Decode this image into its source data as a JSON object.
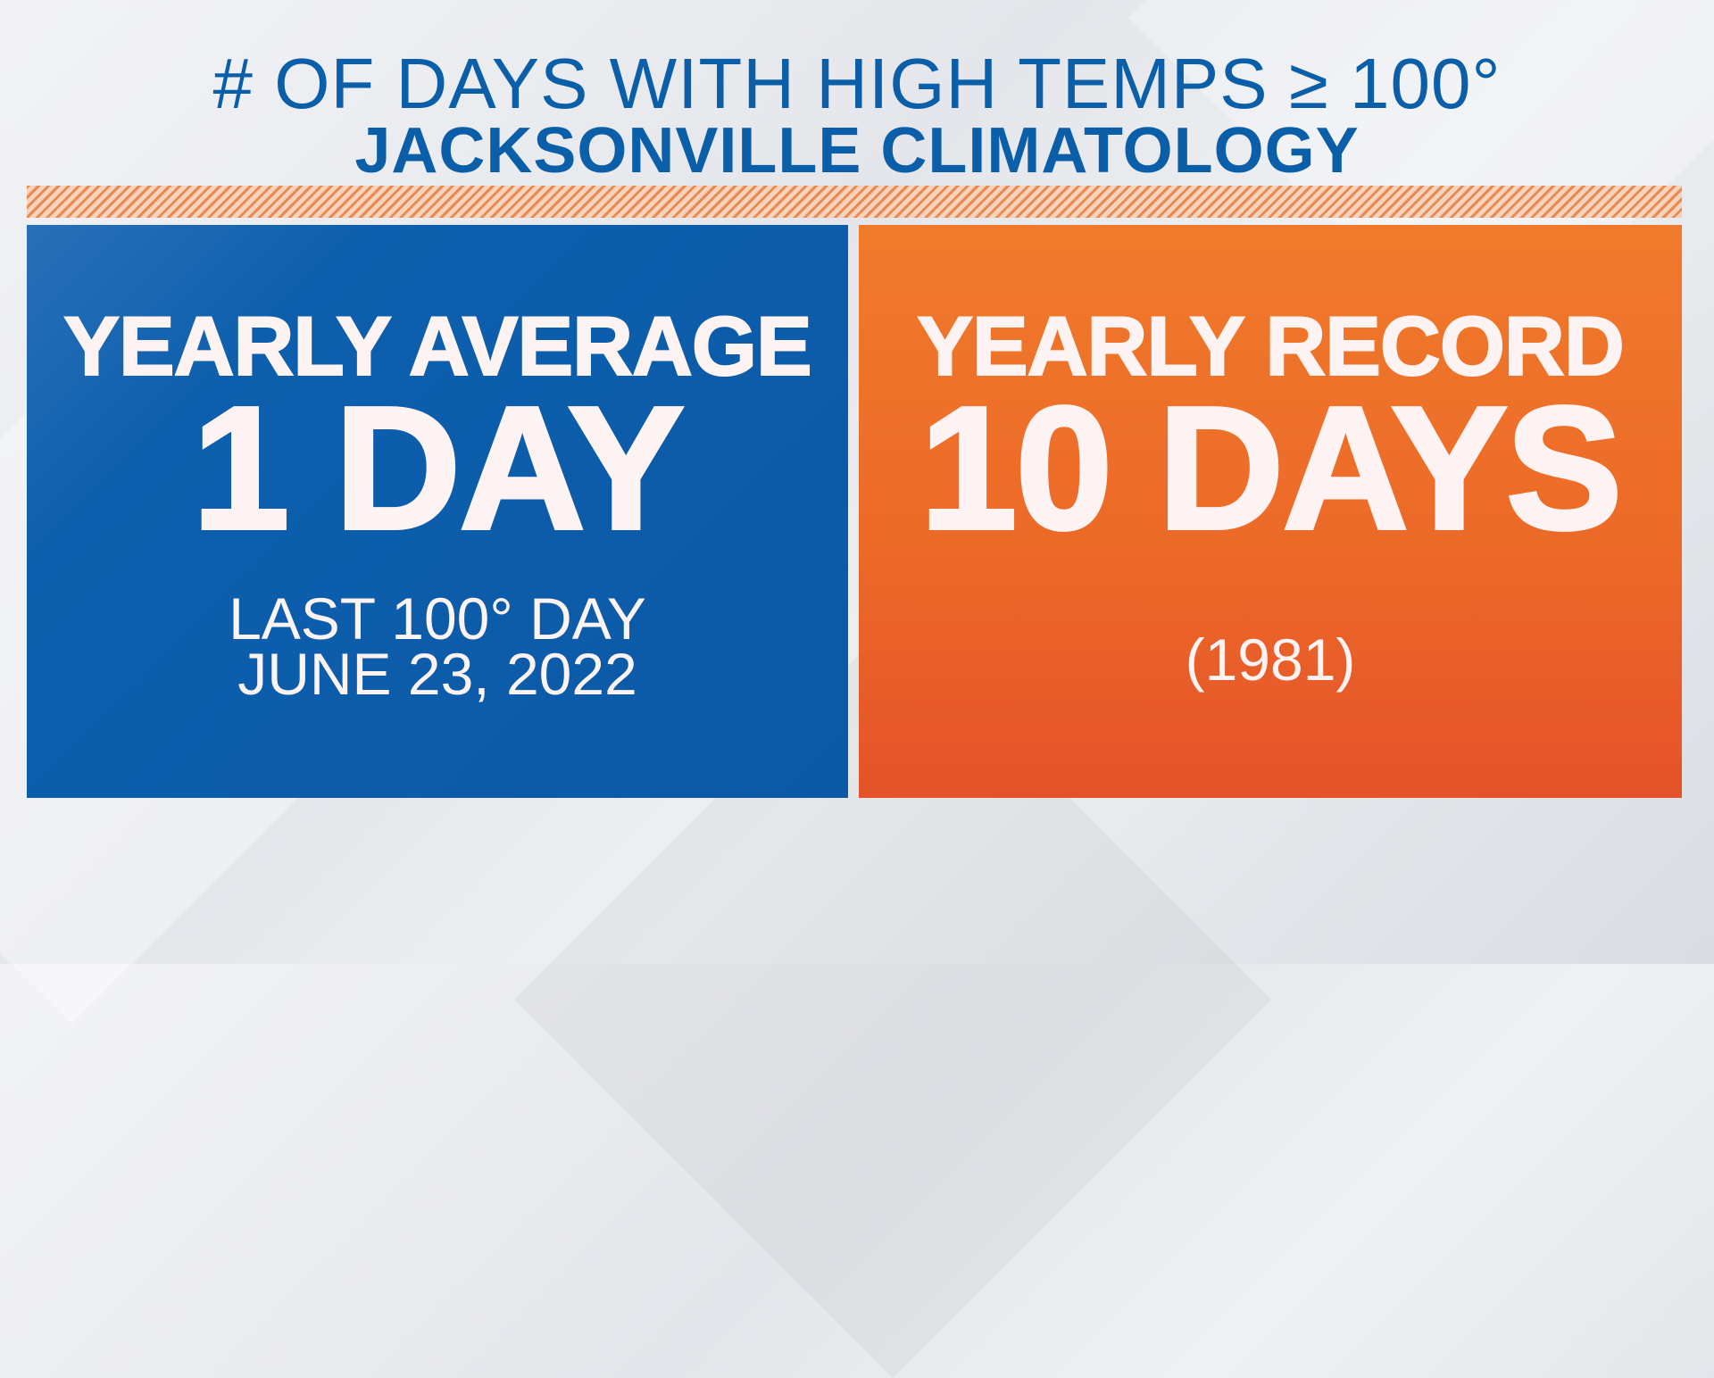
{
  "header": {
    "title": "# OF DAYS WITH HIGH TEMPS ≥ 100°",
    "subtitle": "JACKSONVILLE CLIMATOLOGY"
  },
  "cards": {
    "average": {
      "label": "YEARLY AVERAGE",
      "value": "1 DAY",
      "note_line1": "LAST 100° DAY",
      "note_line2": "JUNE 23, 2022"
    },
    "record": {
      "label": "YEARLY RECORD",
      "value": "10 DAYS",
      "note": "(1981)"
    }
  },
  "colors": {
    "title": "#0b5fa8",
    "average_panel": "#0b59a6",
    "record_panel": "#ec6a28",
    "hatch": "#e88a52",
    "panel_text": "#fdf3f3"
  }
}
